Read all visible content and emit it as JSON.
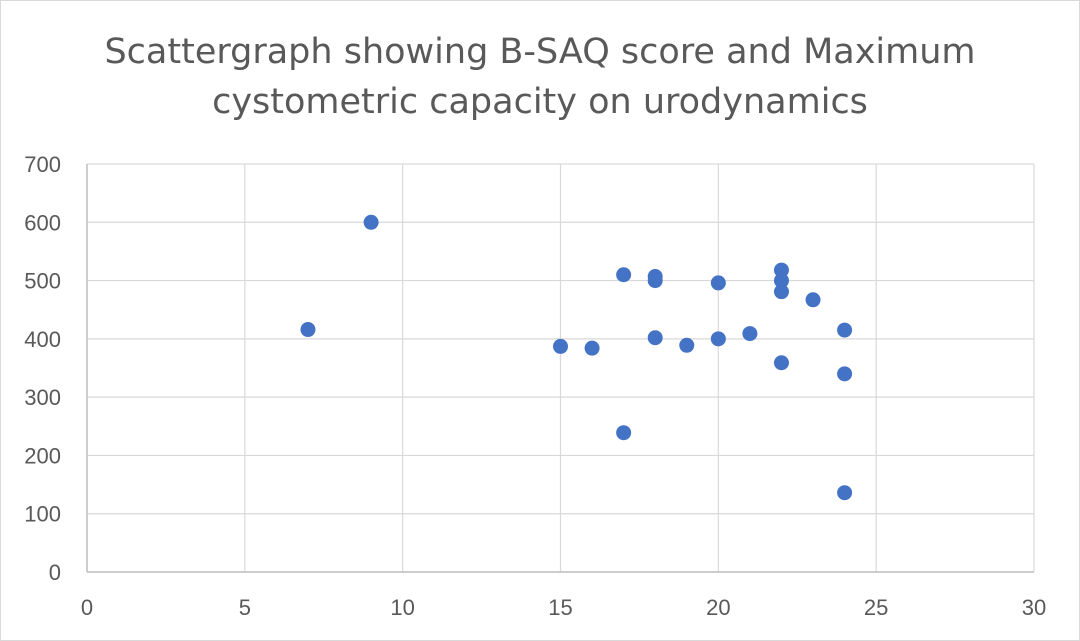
{
  "chart_data": {
    "type": "scatter",
    "title_lines": [
      "Scattergraph showing B-SAQ score and Maximum",
      "cystometric capacity on urodynamics"
    ],
    "xlabel": "",
    "ylabel": "",
    "xlim": [
      0,
      30
    ],
    "ylim": [
      0,
      700
    ],
    "x_ticks": [
      0,
      5,
      10,
      15,
      20,
      25,
      30
    ],
    "y_ticks": [
      0,
      100,
      200,
      300,
      400,
      500,
      600,
      700
    ],
    "grid": true,
    "legend": "none",
    "marker_color": "#4472c4",
    "gridline_color": "#d9d9d9",
    "points": [
      {
        "x": 7,
        "y": 416
      },
      {
        "x": 9,
        "y": 600
      },
      {
        "x": 15,
        "y": 387
      },
      {
        "x": 16,
        "y": 384
      },
      {
        "x": 17,
        "y": 510
      },
      {
        "x": 17,
        "y": 239
      },
      {
        "x": 18,
        "y": 507
      },
      {
        "x": 18,
        "y": 500
      },
      {
        "x": 18,
        "y": 402
      },
      {
        "x": 19,
        "y": 389
      },
      {
        "x": 20,
        "y": 496
      },
      {
        "x": 20,
        "y": 400
      },
      {
        "x": 21,
        "y": 409
      },
      {
        "x": 22,
        "y": 518
      },
      {
        "x": 22,
        "y": 500
      },
      {
        "x": 22,
        "y": 481
      },
      {
        "x": 22,
        "y": 359
      },
      {
        "x": 23,
        "y": 467
      },
      {
        "x": 24,
        "y": 415
      },
      {
        "x": 24,
        "y": 340
      },
      {
        "x": 24,
        "y": 136
      }
    ]
  }
}
